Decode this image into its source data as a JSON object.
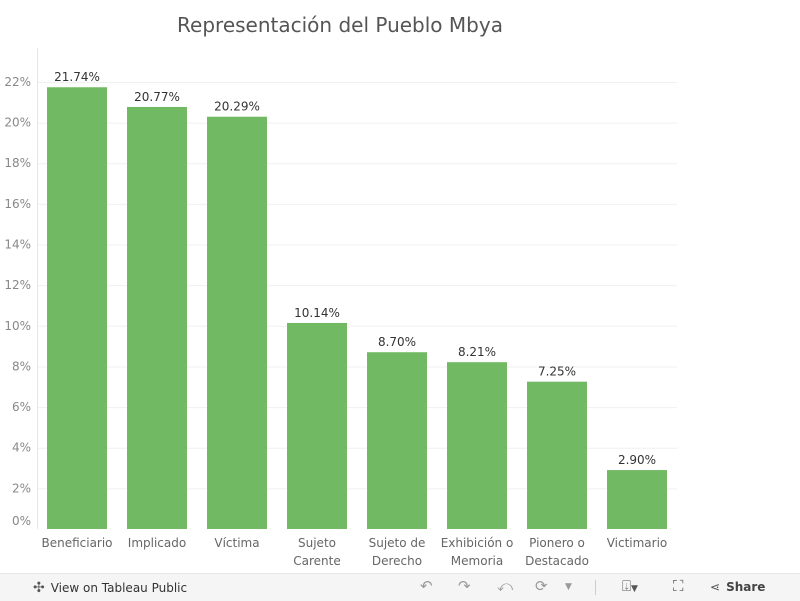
{
  "chart_data": {
    "type": "bar",
    "title": "Representación del Pueblo Mbya",
    "categories": [
      [
        "Beneficiario"
      ],
      [
        "Implicado"
      ],
      [
        "Víctima"
      ],
      [
        "Sujeto",
        "Carente"
      ],
      [
        "Sujeto de",
        "Derecho"
      ],
      [
        "Exhibición o",
        "Memoria"
      ],
      [
        "Pionero o",
        "Destacado"
      ],
      [
        "Victimario"
      ]
    ],
    "values": [
      21.74,
      20.77,
      20.29,
      10.14,
      8.7,
      8.21,
      7.25,
      2.9
    ],
    "data_labels": [
      "21.74%",
      "20.77%",
      "20.29%",
      "10.14%",
      "8.70%",
      "8.21%",
      "7.25%",
      "2.90%"
    ],
    "yticks": [
      "0%",
      "2%",
      "4%",
      "6%",
      "8%",
      "10%",
      "12%",
      "14%",
      "16%",
      "18%",
      "20%",
      "22%"
    ],
    "ylim": [
      0,
      23
    ],
    "grid": true,
    "bar_color": "#72b964"
  },
  "toolbar": {
    "view_label": "View on Tableau Public",
    "share_label": "Share"
  }
}
